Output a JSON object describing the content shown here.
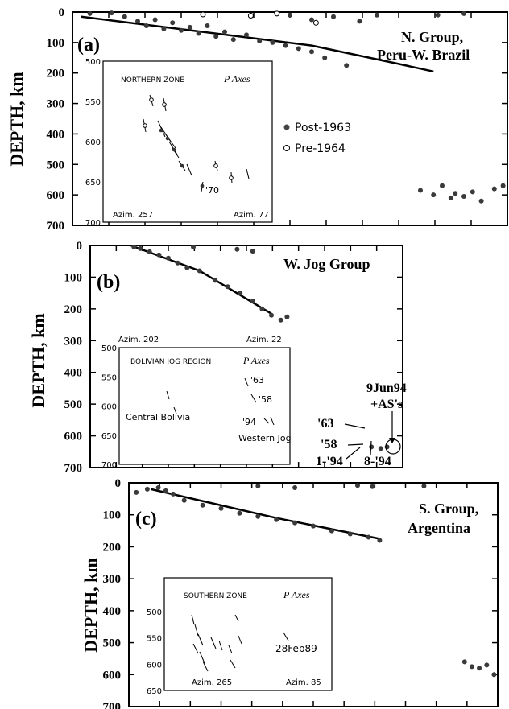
{
  "chart_data": [
    {
      "type": "scatter",
      "panel_label": "(a)",
      "group_label_line1": "N. Group,",
      "group_label_line2": "Peru-W. Brazil",
      "ylabel": "DEPTH, km",
      "yticks": [
        "0",
        "100",
        "200",
        "300",
        "400",
        "500",
        "600",
        "700"
      ],
      "ylim": [
        0,
        700
      ],
      "legend": [
        {
          "symbol": "filled",
          "label": "Post-1963"
        },
        {
          "symbol": "open",
          "label": "Pre-1964"
        }
      ],
      "legend_position": "middle-right",
      "series": [
        {
          "values": [
            [
              0.04,
              5
            ],
            [
              0.09,
              3
            ],
            [
              0.12,
              15
            ],
            [
              0.15,
              30
            ],
            [
              0.17,
              45
            ],
            [
              0.19,
              25
            ],
            [
              0.21,
              55
            ],
            [
              0.23,
              35
            ],
            [
              0.25,
              60
            ],
            [
              0.27,
              50
            ],
            [
              0.29,
              70
            ],
            [
              0.31,
              45
            ],
            [
              0.33,
              80
            ],
            [
              0.35,
              65
            ],
            [
              0.37,
              90
            ],
            [
              0.4,
              75
            ],
            [
              0.43,
              95
            ],
            [
              0.46,
              100
            ],
            [
              0.49,
              110
            ],
            [
              0.52,
              120
            ],
            [
              0.55,
              130
            ],
            [
              0.58,
              150
            ],
            [
              0.63,
              175
            ],
            [
              0.5,
              10
            ],
            [
              0.55,
              25
            ],
            [
              0.6,
              15
            ],
            [
              0.66,
              30
            ],
            [
              0.7,
              10
            ],
            [
              0.84,
              10
            ],
            [
              0.9,
              5
            ],
            [
              0.8,
              585
            ],
            [
              0.83,
              600
            ],
            [
              0.85,
              570
            ],
            [
              0.87,
              610
            ],
            [
              0.88,
              595
            ],
            [
              0.9,
              605
            ],
            [
              0.92,
              590
            ],
            [
              0.94,
              620
            ],
            [
              0.97,
              580
            ],
            [
              0.99,
              570
            ]
          ]
        },
        {
          "values": [
            [
              0.3,
              8
            ],
            [
              0.41,
              12
            ],
            [
              0.47,
              5
            ],
            [
              0.56,
              35
            ]
          ]
        }
      ],
      "slab_line": [
        [
          0.02,
          15
        ],
        [
          0.3,
          65
        ],
        [
          0.55,
          110
        ],
        [
          0.75,
          170
        ],
        [
          0.83,
          195
        ]
      ],
      "inset": {
        "title": "NORTHERN ZONE",
        "subtitle": "P Axes",
        "yticks": [
          "500",
          "550",
          "600",
          "650",
          "700"
        ],
        "left_label": "Azim. 257",
        "right_label": "Azim. 77",
        "annotation": "'70"
      }
    },
    {
      "type": "scatter",
      "panel_label": "(b)",
      "group_label_line1": "W. Jog Group",
      "group_label_line2": "",
      "ylabel": "DEPTH, km",
      "yticks": [
        "0",
        "100",
        "200",
        "300",
        "400",
        "500",
        "600",
        "700"
      ],
      "ylim": [
        0,
        700
      ],
      "series": [
        {
          "values": [
            [
              0.14,
              5
            ],
            [
              0.16,
              10
            ],
            [
              0.19,
              20
            ],
            [
              0.22,
              30
            ],
            [
              0.25,
              40
            ],
            [
              0.28,
              55
            ],
            [
              0.31,
              70
            ],
            [
              0.35,
              80
            ],
            [
              0.4,
              110
            ],
            [
              0.44,
              130
            ],
            [
              0.48,
              150
            ],
            [
              0.52,
              175
            ],
            [
              0.55,
              200
            ],
            [
              0.58,
              220
            ],
            [
              0.61,
              235
            ],
            [
              0.63,
              225
            ],
            [
              0.33,
              5
            ],
            [
              0.47,
              12
            ],
            [
              0.52,
              18
            ],
            [
              0.9,
              635
            ],
            [
              0.93,
              640
            ],
            [
              0.95,
              635
            ]
          ]
        }
      ],
      "slab_line": [
        [
          0.13,
          0
        ],
        [
          0.35,
          80
        ],
        [
          0.58,
          215
        ]
      ],
      "callouts": [
        "'63",
        "'58",
        "1-'94",
        "8-'94",
        "9Jun94",
        "+AS's"
      ],
      "inset": {
        "title": "BOLIVIAN JOG REGION",
        "subtitle": "P Axes",
        "yticks": [
          "500",
          "550",
          "600",
          "650",
          "700"
        ],
        "left_label": "Azim. 202",
        "right_label": "Azim. 22",
        "region_left": "Central Bolivia",
        "region_right": "Western Jog",
        "years": [
          "'63",
          "'58",
          "'94"
        ]
      }
    },
    {
      "type": "scatter",
      "panel_label": "(c)",
      "group_label_line1": "S. Group,",
      "group_label_line2": "Argentina",
      "ylabel": "DEPTH, km",
      "yticks": [
        "0",
        "100",
        "200",
        "300",
        "400",
        "500",
        "600",
        "700"
      ],
      "ylim": [
        0,
        700
      ],
      "series": [
        {
          "values": [
            [
              0.02,
              30
            ],
            [
              0.05,
              20
            ],
            [
              0.08,
              15
            ],
            [
              0.1,
              25
            ],
            [
              0.12,
              35
            ],
            [
              0.15,
              55
            ],
            [
              0.2,
              70
            ],
            [
              0.25,
              80
            ],
            [
              0.3,
              95
            ],
            [
              0.35,
              105
            ],
            [
              0.4,
              115
            ],
            [
              0.45,
              125
            ],
            [
              0.5,
              135
            ],
            [
              0.55,
              150
            ],
            [
              0.6,
              160
            ],
            [
              0.65,
              170
            ],
            [
              0.68,
              180
            ],
            [
              0.35,
              10
            ],
            [
              0.45,
              15
            ],
            [
              0.62,
              8
            ],
            [
              0.66,
              12
            ],
            [
              0.8,
              10
            ],
            [
              0.91,
              560
            ],
            [
              0.93,
              575
            ],
            [
              0.95,
              580
            ],
            [
              0.97,
              570
            ],
            [
              0.99,
              600
            ]
          ]
        }
      ],
      "slab_line": [
        [
          0.06,
          20
        ],
        [
          0.4,
          110
        ],
        [
          0.68,
          175
        ]
      ],
      "inset": {
        "title": "SOUTHERN ZONE",
        "subtitle": "P Axes",
        "yticks": [
          "500",
          "550",
          "600",
          "650"
        ],
        "left_label": "Azim. 265",
        "right_label": "Azim. 85",
        "annotation": "28Feb89"
      }
    }
  ]
}
